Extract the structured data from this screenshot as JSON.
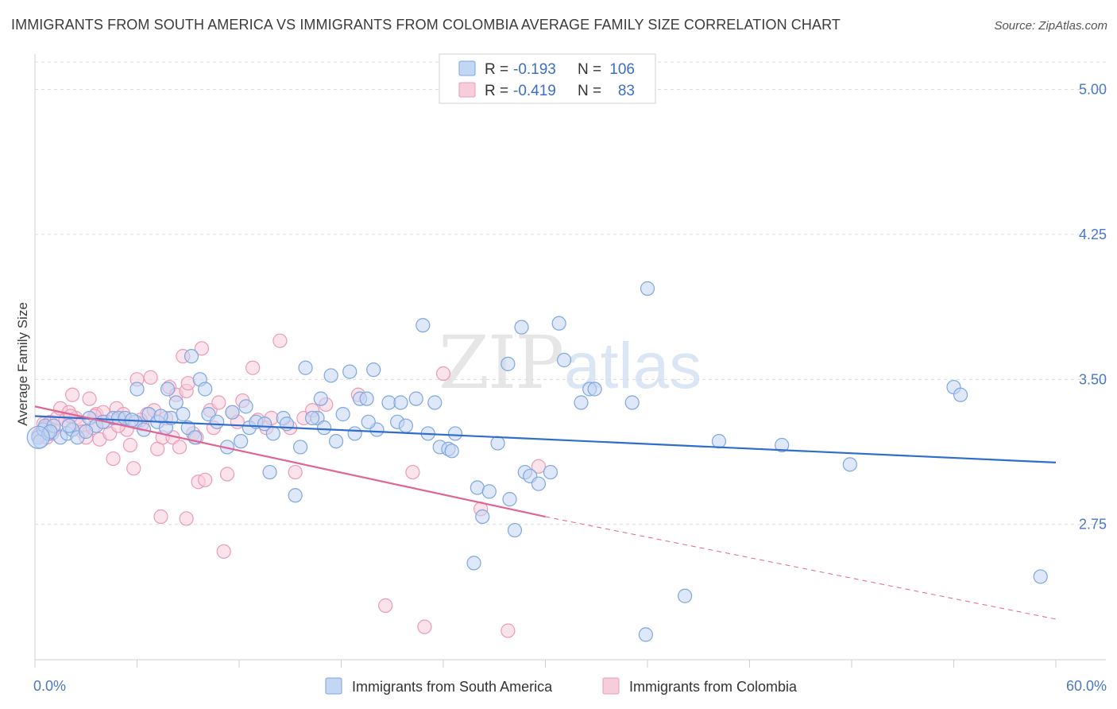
{
  "title": "IMMIGRANTS FROM SOUTH AMERICA VS IMMIGRANTS FROM COLOMBIA AVERAGE FAMILY SIZE CORRELATION CHART",
  "source": "Source: ZipAtlas.com",
  "watermark": "ZIPatlas",
  "chart_data": {
    "type": "scatter",
    "ylabel": "Average Family Size",
    "xlim": [
      0,
      60
    ],
    "ylim": [
      2.05,
      5.15
    ],
    "y_ticks": [
      2.75,
      3.5,
      4.25,
      5.0
    ],
    "y_tick_labels": [
      "2.75",
      "3.50",
      "4.25",
      "5.00"
    ],
    "x_end_labels": [
      "0.0%",
      "60.0%"
    ],
    "legend": {
      "rows": [
        {
          "r_label": "R =",
          "r_value": "-0.193",
          "n_label": "N =",
          "n_value": "106"
        },
        {
          "r_label": "R =",
          "r_value": "-0.419",
          "n_label": "N =",
          "n_value": "83"
        }
      ]
    },
    "series": [
      {
        "name": "Immigrants from South America",
        "color": "#7ea7e0",
        "fill": "#c3d6f3",
        "line_color": "#2f6ecf",
        "trend": {
          "x0": 0,
          "y0": 3.31,
          "x1": 60,
          "y1": 3.07
        },
        "points": [
          [
            0.2,
            3.2
          ],
          [
            0.3,
            3.18
          ],
          [
            0.5,
            3.24
          ],
          [
            0.6,
            3.26
          ],
          [
            0.8,
            3.22
          ],
          [
            1.1,
            3.26
          ],
          [
            1.5,
            3.2
          ],
          [
            1.9,
            3.22
          ],
          [
            2.2,
            3.24
          ],
          [
            2.5,
            3.2
          ],
          [
            3.2,
            3.3
          ],
          [
            3.6,
            3.26
          ],
          [
            4.0,
            3.28
          ],
          [
            4.6,
            3.3
          ],
          [
            4.9,
            3.3
          ],
          [
            5.3,
            3.3
          ],
          [
            5.9,
            3.28
          ],
          [
            6.0,
            3.45
          ],
          [
            6.4,
            3.24
          ],
          [
            6.7,
            3.32
          ],
          [
            7.2,
            3.28
          ],
          [
            7.7,
            3.25
          ],
          [
            7.8,
            3.45
          ],
          [
            8.0,
            3.3
          ],
          [
            8.3,
            3.38
          ],
          [
            8.7,
            3.32
          ],
          [
            9.0,
            3.25
          ],
          [
            9.2,
            3.62
          ],
          [
            9.4,
            3.2
          ],
          [
            9.7,
            3.5
          ],
          [
            10.0,
            3.45
          ],
          [
            10.2,
            3.32
          ],
          [
            10.7,
            3.28
          ],
          [
            11.3,
            3.15
          ],
          [
            11.6,
            3.33
          ],
          [
            12.1,
            3.18
          ],
          [
            12.4,
            3.36
          ],
          [
            12.6,
            3.25
          ],
          [
            13.0,
            3.28
          ],
          [
            13.5,
            3.27
          ],
          [
            13.8,
            3.02
          ],
          [
            14.0,
            3.22
          ],
          [
            14.6,
            3.3
          ],
          [
            14.8,
            3.27
          ],
          [
            15.3,
            2.9
          ],
          [
            15.6,
            3.15
          ],
          [
            15.9,
            3.56
          ],
          [
            16.6,
            3.3
          ],
          [
            16.8,
            3.4
          ],
          [
            17.0,
            3.25
          ],
          [
            17.4,
            3.52
          ],
          [
            17.7,
            3.18
          ],
          [
            18.1,
            3.32
          ],
          [
            18.5,
            3.54
          ],
          [
            18.8,
            3.22
          ],
          [
            19.1,
            3.4
          ],
          [
            19.5,
            3.4
          ],
          [
            19.9,
            3.55
          ],
          [
            20.1,
            3.24
          ],
          [
            20.8,
            3.38
          ],
          [
            21.3,
            3.28
          ],
          [
            21.5,
            3.38
          ],
          [
            21.8,
            3.26
          ],
          [
            22.4,
            3.4
          ],
          [
            22.8,
            3.78
          ],
          [
            23.1,
            3.22
          ],
          [
            23.5,
            3.38
          ],
          [
            23.8,
            3.15
          ],
          [
            24.3,
            3.14
          ],
          [
            24.5,
            3.13
          ],
          [
            24.7,
            3.22
          ],
          [
            25.8,
            2.55
          ],
          [
            26.0,
            2.94
          ],
          [
            26.3,
            2.79
          ],
          [
            26.7,
            2.92
          ],
          [
            27.2,
            3.17
          ],
          [
            27.8,
            3.58
          ],
          [
            27.9,
            2.88
          ],
          [
            28.2,
            2.72
          ],
          [
            28.6,
            3.77
          ],
          [
            28.8,
            3.02
          ],
          [
            29.1,
            3.0
          ],
          [
            29.6,
            2.96
          ],
          [
            30.3,
            3.02
          ],
          [
            30.8,
            3.79
          ],
          [
            31.1,
            3.6
          ],
          [
            32.1,
            3.38
          ],
          [
            32.6,
            3.45
          ],
          [
            32.9,
            3.45
          ],
          [
            35.1,
            3.38
          ],
          [
            36.0,
            3.97
          ],
          [
            35.9,
            2.18
          ],
          [
            38.2,
            2.38
          ],
          [
            40.2,
            3.18
          ],
          [
            43.9,
            3.16
          ],
          [
            47.9,
            3.06
          ],
          [
            54.0,
            3.46
          ],
          [
            54.4,
            3.42
          ],
          [
            59.1,
            2.48
          ],
          [
            0.9,
            3.23
          ],
          [
            2.0,
            3.26
          ],
          [
            3.0,
            3.23
          ],
          [
            5.7,
            3.29
          ],
          [
            7.4,
            3.31
          ],
          [
            16.3,
            3.3
          ],
          [
            19.6,
            3.28
          ]
        ]
      },
      {
        "name": "Immigrants from Colombia",
        "color": "#ec9bb6",
        "fill": "#f7ccdb",
        "line_color": "#e06595",
        "trend": {
          "x0": 0,
          "y0": 3.36,
          "x1": 30,
          "y1": 2.79
        },
        "trend_dashed": {
          "x0": 30,
          "y0": 2.79,
          "x1": 60,
          "y1": 2.26
        },
        "points": [
          [
            0.3,
            3.22
          ],
          [
            0.5,
            3.27
          ],
          [
            0.7,
            3.2
          ],
          [
            0.9,
            3.28
          ],
          [
            1.1,
            3.24
          ],
          [
            1.3,
            3.3
          ],
          [
            1.5,
            3.35
          ],
          [
            1.8,
            3.29
          ],
          [
            2.0,
            3.33
          ],
          [
            2.2,
            3.42
          ],
          [
            2.4,
            3.3
          ],
          [
            2.6,
            3.27
          ],
          [
            2.8,
            3.23
          ],
          [
            3.0,
            3.2
          ],
          [
            3.2,
            3.4
          ],
          [
            3.4,
            3.25
          ],
          [
            3.6,
            3.32
          ],
          [
            3.8,
            3.19
          ],
          [
            4.0,
            3.33
          ],
          [
            4.2,
            3.28
          ],
          [
            4.4,
            3.22
          ],
          [
            4.6,
            3.09
          ],
          [
            4.8,
            3.35
          ],
          [
            5.0,
            3.3
          ],
          [
            5.2,
            3.32
          ],
          [
            5.4,
            3.24
          ],
          [
            5.6,
            3.16
          ],
          [
            5.8,
            3.04
          ],
          [
            6.0,
            3.5
          ],
          [
            6.3,
            3.27
          ],
          [
            6.6,
            3.32
          ],
          [
            6.8,
            3.51
          ],
          [
            7.0,
            3.34
          ],
          [
            7.2,
            3.14
          ],
          [
            7.5,
            3.2
          ],
          [
            7.7,
            3.3
          ],
          [
            7.9,
            3.46
          ],
          [
            8.1,
            3.2
          ],
          [
            8.3,
            3.42
          ],
          [
            8.5,
            3.15
          ],
          [
            8.7,
            3.62
          ],
          [
            8.9,
            3.44
          ],
          [
            9.0,
            3.48
          ],
          [
            9.3,
            3.22
          ],
          [
            9.5,
            3.2
          ],
          [
            9.6,
            2.97
          ],
          [
            9.8,
            3.66
          ],
          [
            10.0,
            2.98
          ],
          [
            10.3,
            3.34
          ],
          [
            10.5,
            3.25
          ],
          [
            10.8,
            3.38
          ],
          [
            11.1,
            2.61
          ],
          [
            11.3,
            3.01
          ],
          [
            11.6,
            3.33
          ],
          [
            11.9,
            3.28
          ],
          [
            12.2,
            3.39
          ],
          [
            12.8,
            3.56
          ],
          [
            13.1,
            3.29
          ],
          [
            13.6,
            3.25
          ],
          [
            13.9,
            3.3
          ],
          [
            14.4,
            3.7
          ],
          [
            15.0,
            3.25
          ],
          [
            15.3,
            3.02
          ],
          [
            15.8,
            3.3
          ],
          [
            16.3,
            3.34
          ],
          [
            17.1,
            3.37
          ],
          [
            19.0,
            3.42
          ],
          [
            20.6,
            2.33
          ],
          [
            22.2,
            3.02
          ],
          [
            22.9,
            2.22
          ],
          [
            24.0,
            3.53
          ],
          [
            26.2,
            2.83
          ],
          [
            27.8,
            2.2
          ],
          [
            29.6,
            3.05
          ],
          [
            0.2,
            3.21
          ],
          [
            0.6,
            3.25
          ],
          [
            1.0,
            3.22
          ],
          [
            2.1,
            3.31
          ],
          [
            3.5,
            3.31
          ],
          [
            4.9,
            3.26
          ],
          [
            7.4,
            2.79
          ],
          [
            8.9,
            2.78
          ],
          [
            6.2,
            3.29
          ]
        ]
      }
    ]
  },
  "bottom_legend": [
    "Immigrants from South America",
    "Immigrants from Colombia"
  ]
}
